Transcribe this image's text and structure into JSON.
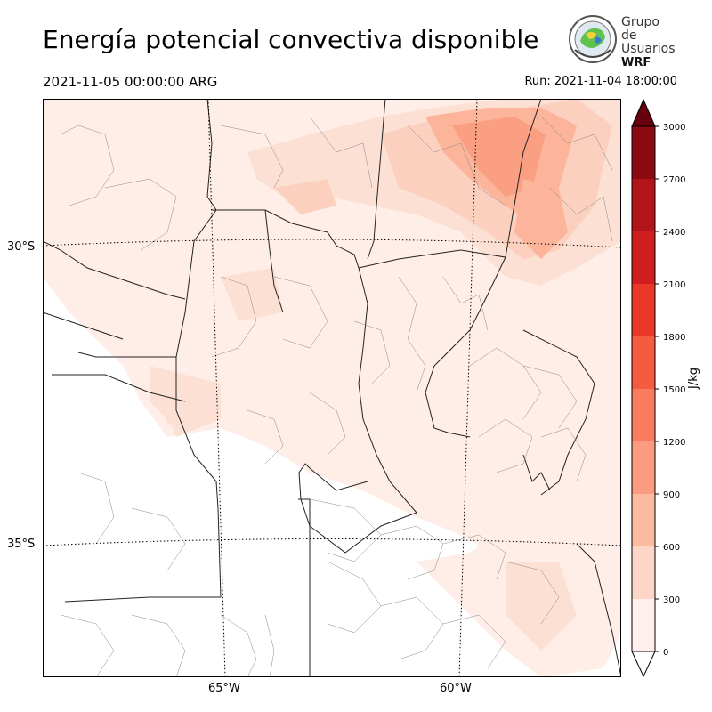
{
  "header": {
    "title": "Energía potencial convectiva disponible",
    "valid_time": "2021-11-05 00:00:00 ARG",
    "run_time": "Run: 2021-11-04 18:00:00"
  },
  "logo": {
    "line1": "Grupo de",
    "line2": "Usuarios",
    "line3": "WRF"
  },
  "map": {
    "lat_labels": [
      "30°S",
      "35°S"
    ],
    "lon_labels": [
      "65°W",
      "60°W"
    ]
  },
  "colorbar": {
    "unit": "J/kg",
    "ticks": [
      "0",
      "300",
      "600",
      "900",
      "1200",
      "1500",
      "1800",
      "2100",
      "2400",
      "2700",
      "3000"
    ],
    "colors": [
      "#fff0eb",
      "#fdd6c8",
      "#fcbba1",
      "#fc9b7f",
      "#fb7b5e",
      "#f65a41",
      "#ea372a",
      "#d01e1f",
      "#b3141a",
      "#8a0a12"
    ],
    "extend": "both",
    "over_color": "#67000d",
    "under_color": "#ffffff"
  },
  "field": {
    "colors_used": [
      "#ffeee7",
      "#fde0d4",
      "#fcd0be",
      "#fcb59b",
      "#fb9f83"
    ]
  }
}
